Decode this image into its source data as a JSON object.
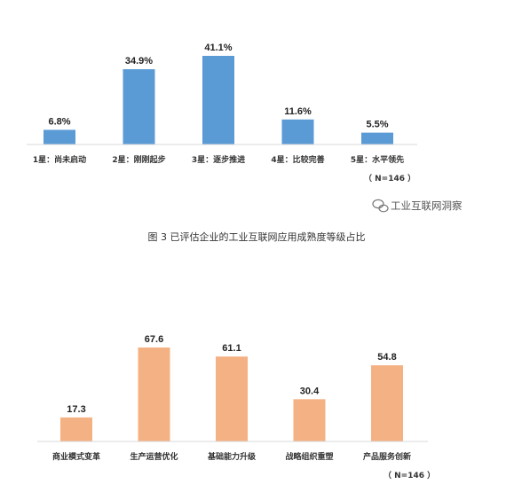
{
  "chart_data": [
    {
      "type": "bar",
      "categories": [
        "1星：尚未启动",
        "2星：刚刚起步",
        "3星：逐步推进",
        "4星：比较完善",
        "5星：水平领先"
      ],
      "values": [
        6.8,
        34.9,
        41.1,
        11.6,
        5.5
      ],
      "value_labels": [
        "6.8%",
        "34.9%",
        "41.1%",
        "11.6%",
        "5.5%"
      ],
      "ylim": [
        0,
        41.1
      ],
      "color": "#5b9bd5",
      "note": "（ N=146 ）"
    },
    {
      "type": "bar",
      "categories": [
        "商业模式变革",
        "生产运营优化",
        "基础能力升级",
        "战略组织重塑",
        "产品服务创新"
      ],
      "values": [
        17.3,
        67.6,
        61.1,
        30.4,
        54.8
      ],
      "value_labels": [
        "17.3",
        "67.6",
        "61.1",
        "30.4",
        "54.8"
      ],
      "ylim": [
        0,
        67.6
      ],
      "color": "#f4b183",
      "note": "（ N=146 ）"
    }
  ],
  "caption": "图 3 已评估企业的工业互联网应用成熟度等级占比",
  "watermark": "工业互联网洞察"
}
